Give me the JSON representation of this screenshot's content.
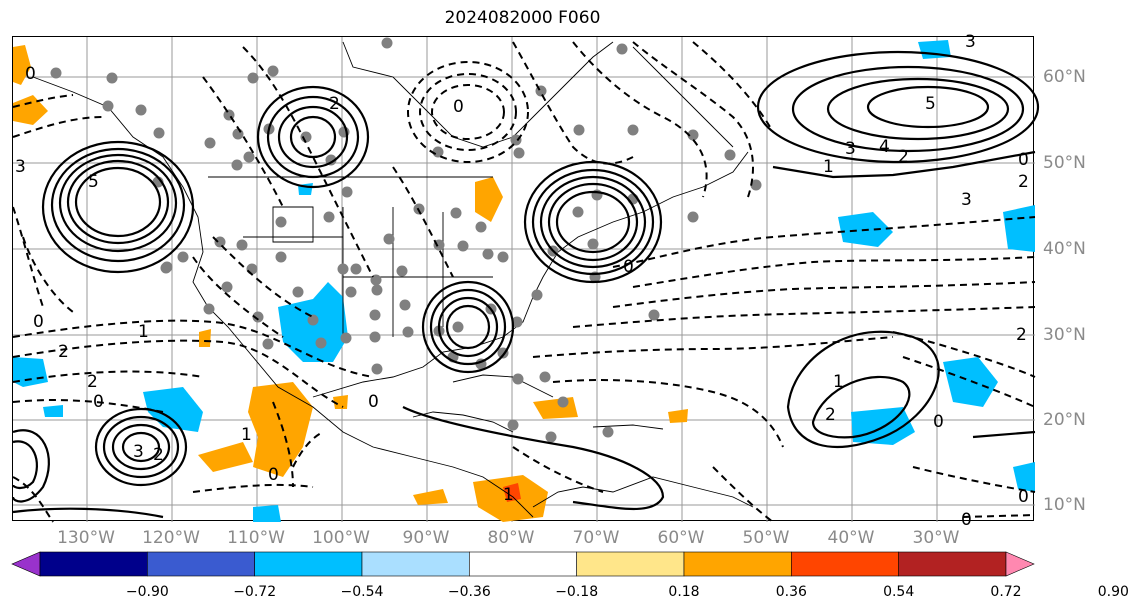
{
  "title": "2024082000 F060",
  "lon_labels": [
    "130°W",
    "120°W",
    "110°W",
    "100°W",
    "90°W",
    "80°W",
    "70°W",
    "60°W",
    "50°W",
    "40°W",
    "30°W"
  ],
  "lat_labels": [
    "60°N",
    "50°N",
    "40°N",
    "30°N",
    "20°N",
    "10°N"
  ],
  "contour_labels": [
    "0",
    "1",
    "2",
    "3",
    "4",
    "5"
  ],
  "colorbar": {
    "colors": [
      "#9932cc",
      "#00008b",
      "#3a5bd0",
      "#00bfff",
      "#aadfff",
      "#ffffff",
      "#ffe68a",
      "#ffa500",
      "#ff4500",
      "#b22222",
      "#ff88b0"
    ],
    "ticks": [
      "−0.90",
      "−0.72",
      "−0.54",
      "−0.36",
      "−0.18",
      "0.18",
      "0.36",
      "0.54",
      "0.72",
      "0.90"
    ]
  },
  "colors": {
    "negative_fill": "#00bfff",
    "positive_fill": "#ffa500",
    "strong_positive_fill": "#ff4500",
    "station_dots": "#808080",
    "grid": "#999999"
  }
}
